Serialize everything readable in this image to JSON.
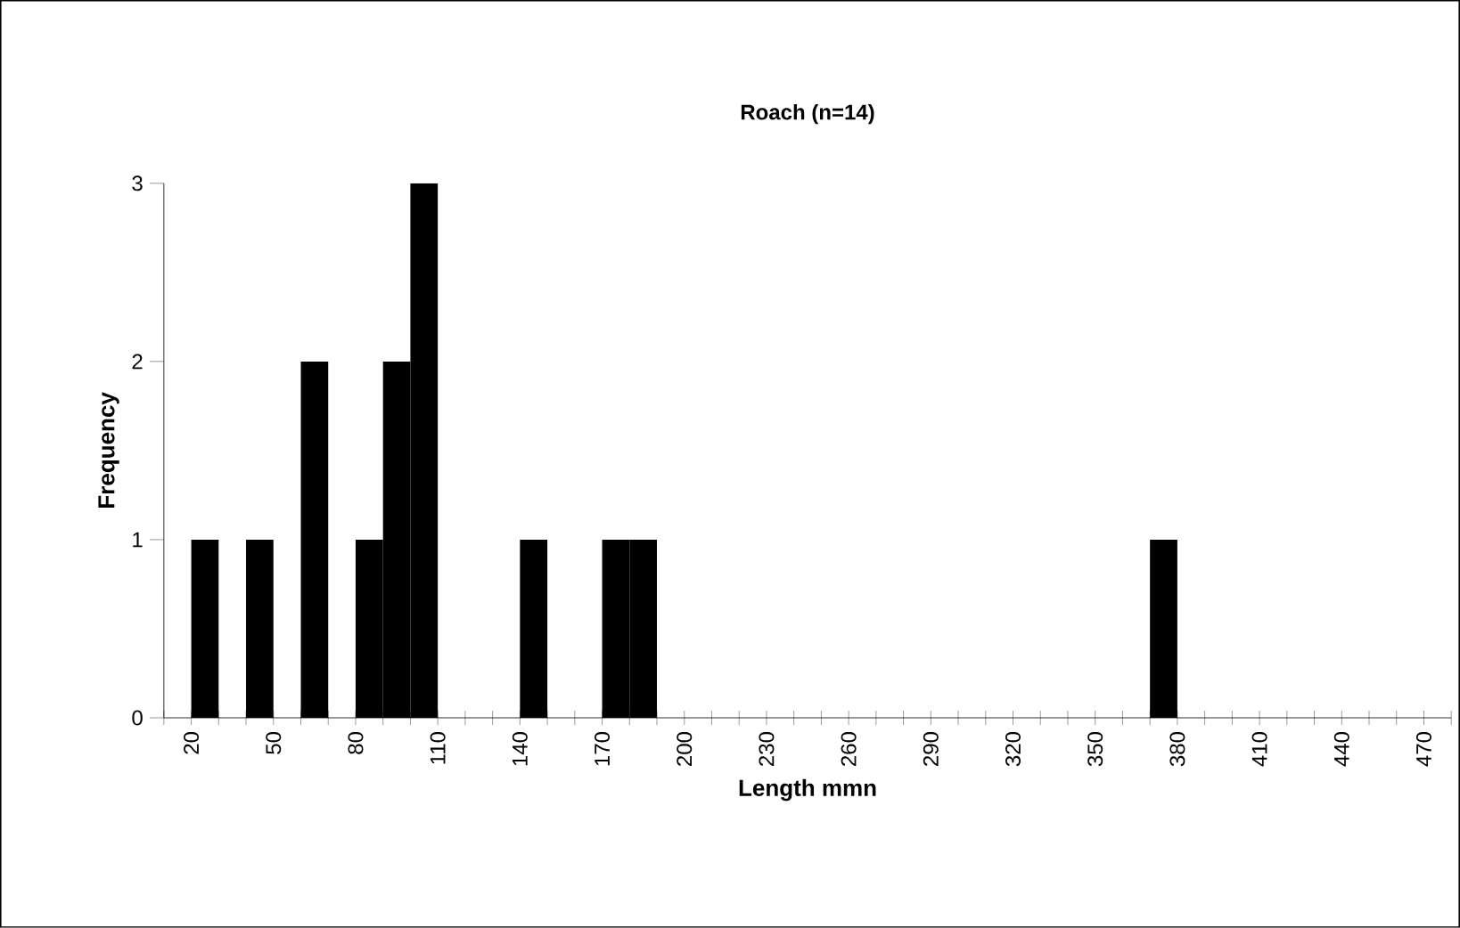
{
  "chart_data": {
    "type": "histogram",
    "title": "Roach (n=14)",
    "xlabel": "Length mmn",
    "ylabel": "Frequency",
    "color": "#000000",
    "bins": [
      10,
      20,
      30,
      40,
      50,
      60,
      70,
      80,
      90,
      100,
      110,
      120,
      130,
      140,
      150,
      160,
      170,
      180,
      190,
      200,
      210,
      220,
      230,
      240,
      250,
      260,
      270,
      280,
      290,
      300,
      310,
      320,
      330,
      340,
      350,
      360,
      370,
      380,
      390,
      400,
      410,
      420,
      430,
      440,
      450,
      460,
      470,
      480
    ],
    "values": [
      0,
      1,
      0,
      1,
      0,
      2,
      0,
      1,
      2,
      3,
      0,
      0,
      0,
      1,
      0,
      0,
      1,
      1,
      0,
      0,
      0,
      0,
      0,
      0,
      0,
      0,
      0,
      0,
      0,
      0,
      0,
      0,
      0,
      0,
      0,
      0,
      1,
      0,
      0,
      0,
      0,
      0,
      0,
      0,
      0,
      0,
      0
    ],
    "xlim": [
      10,
      480
    ],
    "xticks": [
      {
        "value": 10,
        "label": null
      },
      20,
      {
        "value": 30,
        "label": null
      },
      {
        "value": 40,
        "label": null
      },
      50,
      {
        "value": 60,
        "label": null
      },
      {
        "value": 70,
        "label": null
      },
      80,
      {
        "value": 90,
        "label": null
      },
      {
        "value": 100,
        "label": null
      },
      110,
      {
        "value": 120,
        "label": null
      },
      {
        "value": 130,
        "label": null
      },
      140,
      {
        "value": 150,
        "label": null
      },
      {
        "value": 160,
        "label": null
      },
      170,
      {
        "value": 180,
        "label": null
      },
      {
        "value": 190,
        "label": null
      },
      200,
      {
        "value": 210,
        "label": null
      },
      {
        "value": 220,
        "label": null
      },
      230,
      {
        "value": 240,
        "label": null
      },
      {
        "value": 250,
        "label": null
      },
      260,
      {
        "value": 270,
        "label": null
      },
      {
        "value": 280,
        "label": null
      },
      290,
      {
        "value": 300,
        "label": null
      },
      {
        "value": 310,
        "label": null
      },
      320,
      {
        "value": 330,
        "label": null
      },
      {
        "value": 340,
        "label": null
      },
      350,
      {
        "value": 360,
        "label": null
      },
      {
        "value": 370,
        "label": null
      },
      380,
      {
        "value": 390,
        "label": null
      },
      {
        "value": 400,
        "label": null
      },
      410,
      {
        "value": 420,
        "label": null
      },
      {
        "value": 430,
        "label": null
      },
      440,
      {
        "value": 450,
        "label": null
      },
      {
        "value": 460,
        "label": null
      },
      470,
      {
        "value": 480,
        "label": null
      }
    ],
    "ylim": [
      0,
      3
    ],
    "yticks": [
      0,
      1,
      2,
      3
    ],
    "grid": false
  }
}
